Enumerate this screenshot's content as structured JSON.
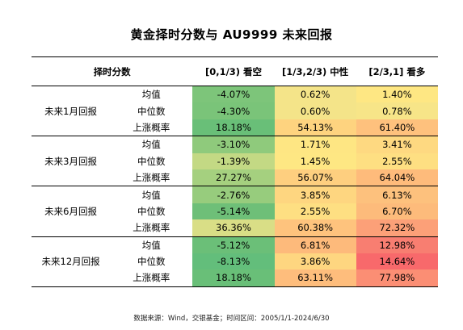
{
  "title": "黄金择时分数与 AU9999 未来回报",
  "table": {
    "header": {
      "score_label": "择时分数",
      "col1": "[0,1/3) 看空",
      "col2": "[1/3,2/3) 中性",
      "col3": "[2/3,1] 看多"
    },
    "groups": [
      {
        "period": "未来1月回报",
        "rows": [
          {
            "metric": "均值",
            "values": [
              "-4.07%",
              "0.62%",
              "1.40%"
            ],
            "colors": [
              "#7dc57a",
              "#f4e489",
              "#fee783"
            ]
          },
          {
            "metric": "中位数",
            "values": [
              "-4.30%",
              "0.60%",
              "0.78%"
            ],
            "colors": [
              "#7ac479",
              "#f4e489",
              "#f7e588"
            ]
          },
          {
            "metric": "上涨概率",
            "values": [
              "18.18%",
              "54.13%",
              "61.40%"
            ],
            "colors": [
              "#69bf78",
              "#fed37f",
              "#fec17d"
            ]
          }
        ]
      },
      {
        "period": "未来3月回报",
        "rows": [
          {
            "metric": "均值",
            "values": [
              "-3.10%",
              "1.71%",
              "3.41%"
            ],
            "colors": [
              "#8fca7c",
              "#fee683",
              "#fed981"
            ]
          },
          {
            "metric": "中位数",
            "values": [
              "-1.39%",
              "1.45%",
              "2.55%"
            ],
            "colors": [
              "#c3d984",
              "#fee783",
              "#fedf82"
            ]
          },
          {
            "metric": "上涨概率",
            "values": [
              "27.27%",
              "56.07%",
              "64.04%"
            ],
            "colors": [
              "#a5d07f",
              "#fecf7f",
              "#febb7b"
            ]
          }
        ]
      },
      {
        "period": "未来6月回报",
        "rows": [
          {
            "metric": "均值",
            "values": [
              "-2.76%",
              "3.85%",
              "6.13%"
            ],
            "colors": [
              "#97cc7d",
              "#fed680",
              "#fdc17d"
            ]
          },
          {
            "metric": "中位数",
            "values": [
              "-5.14%",
              "2.55%",
              "6.70%"
            ],
            "colors": [
              "#6ebf78",
              "#fedf82",
              "#fdbb7b"
            ]
          },
          {
            "metric": "上涨概率",
            "values": [
              "36.36%",
              "60.38%",
              "72.32%"
            ],
            "colors": [
              "#d9de86",
              "#fec37d",
              "#fca078"
            ]
          }
        ]
      },
      {
        "period": "未来12月回报",
        "rows": [
          {
            "metric": "均值",
            "values": [
              "-5.12%",
              "6.81%",
              "12.98%"
            ],
            "colors": [
              "#6bbf78",
              "#fdba7b",
              "#f87e71"
            ]
          },
          {
            "metric": "中位数",
            "values": [
              "-8.13%",
              "3.86%",
              "14.64%"
            ],
            "colors": [
              "#63be7b",
              "#fed680",
              "#f8696b"
            ]
          },
          {
            "metric": "上涨概率",
            "values": [
              "18.18%",
              "63.11%",
              "77.98%"
            ],
            "colors": [
              "#69bf78",
              "#febd7c",
              "#fb8e74"
            ]
          }
        ]
      }
    ]
  },
  "footer": "数据来源：Wind，交银基金；时间区间：2005/1/1-2024/6/30"
}
